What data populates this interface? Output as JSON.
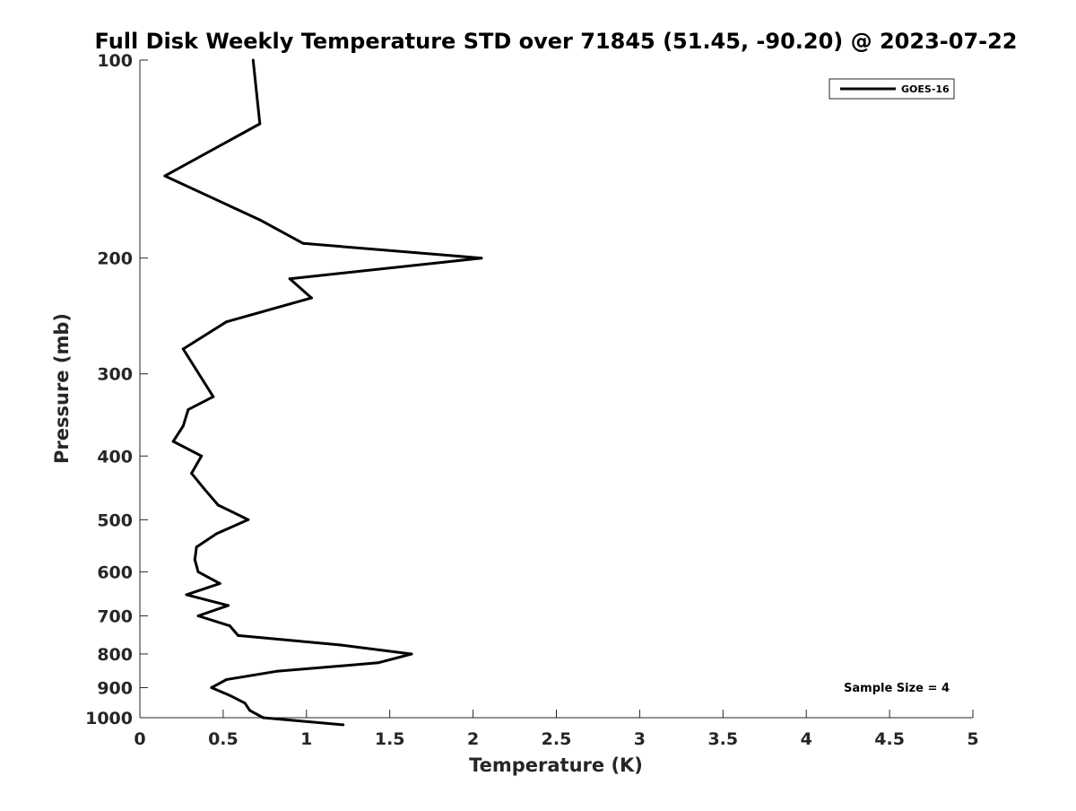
{
  "chart_data": {
    "type": "line",
    "title": "Full Disk Weekly Temperature STD over 71845 (51.45, -90.20) @ 2023-07-22",
    "xlabel": "Temperature (K)",
    "ylabel": "Pressure (mb)",
    "xlim": [
      0,
      5
    ],
    "ylim": [
      1000,
      100
    ],
    "y_scale": "log",
    "y_reversed": true,
    "grid": false,
    "legend_position": "top-right",
    "x_ticks": [
      {
        "value": 0,
        "label": "0"
      },
      {
        "value": 0.5,
        "label": "0.5"
      },
      {
        "value": 1,
        "label": "1"
      },
      {
        "value": 1.5,
        "label": "1.5"
      },
      {
        "value": 2,
        "label": "2"
      },
      {
        "value": 2.5,
        "label": "2.5"
      },
      {
        "value": 3,
        "label": "3"
      },
      {
        "value": 3.5,
        "label": "3.5"
      },
      {
        "value": 4,
        "label": "4"
      },
      {
        "value": 4.5,
        "label": "4.5"
      },
      {
        "value": 5,
        "label": "5"
      }
    ],
    "y_ticks": [
      {
        "value": 100,
        "label": "100"
      },
      {
        "value": 200,
        "label": "200"
      },
      {
        "value": 300,
        "label": "300"
      },
      {
        "value": 400,
        "label": "400"
      },
      {
        "value": 500,
        "label": "500"
      },
      {
        "value": 600,
        "label": "600"
      },
      {
        "value": 700,
        "label": "700"
      },
      {
        "value": 800,
        "label": "800"
      },
      {
        "value": 900,
        "label": "900"
      },
      {
        "value": 1000,
        "label": "1000"
      }
    ],
    "series": [
      {
        "name": "GOES-16",
        "color": "#000000",
        "points": [
          {
            "x": 0.68,
            "p": 100
          },
          {
            "x": 0.72,
            "p": 125
          },
          {
            "x": 0.15,
            "p": 150
          },
          {
            "x": 0.72,
            "p": 175
          },
          {
            "x": 0.98,
            "p": 190
          },
          {
            "x": 2.05,
            "p": 200
          },
          {
            "x": 0.9,
            "p": 215
          },
          {
            "x": 1.03,
            "p": 230
          },
          {
            "x": 0.52,
            "p": 250
          },
          {
            "x": 0.26,
            "p": 275
          },
          {
            "x": 0.44,
            "p": 325
          },
          {
            "x": 0.29,
            "p": 340
          },
          {
            "x": 0.26,
            "p": 360
          },
          {
            "x": 0.2,
            "p": 380
          },
          {
            "x": 0.37,
            "p": 400
          },
          {
            "x": 0.31,
            "p": 425
          },
          {
            "x": 0.39,
            "p": 450
          },
          {
            "x": 0.47,
            "p": 475
          },
          {
            "x": 0.65,
            "p": 500
          },
          {
            "x": 0.46,
            "p": 525
          },
          {
            "x": 0.34,
            "p": 550
          },
          {
            "x": 0.33,
            "p": 575
          },
          {
            "x": 0.35,
            "p": 600
          },
          {
            "x": 0.48,
            "p": 625
          },
          {
            "x": 0.28,
            "p": 650
          },
          {
            "x": 0.53,
            "p": 675
          },
          {
            "x": 0.35,
            "p": 700
          },
          {
            "x": 0.54,
            "p": 725
          },
          {
            "x": 0.59,
            "p": 750
          },
          {
            "x": 1.2,
            "p": 775
          },
          {
            "x": 1.63,
            "p": 800
          },
          {
            "x": 1.43,
            "p": 825
          },
          {
            "x": 0.82,
            "p": 850
          },
          {
            "x": 0.52,
            "p": 875
          },
          {
            "x": 0.43,
            "p": 900
          },
          {
            "x": 0.54,
            "p": 925
          },
          {
            "x": 0.63,
            "p": 950
          },
          {
            "x": 0.66,
            "p": 975
          },
          {
            "x": 0.74,
            "p": 1000
          },
          {
            "x": 1.22,
            "p": 1025
          }
        ]
      }
    ],
    "annotation": "Sample Size = 4"
  }
}
